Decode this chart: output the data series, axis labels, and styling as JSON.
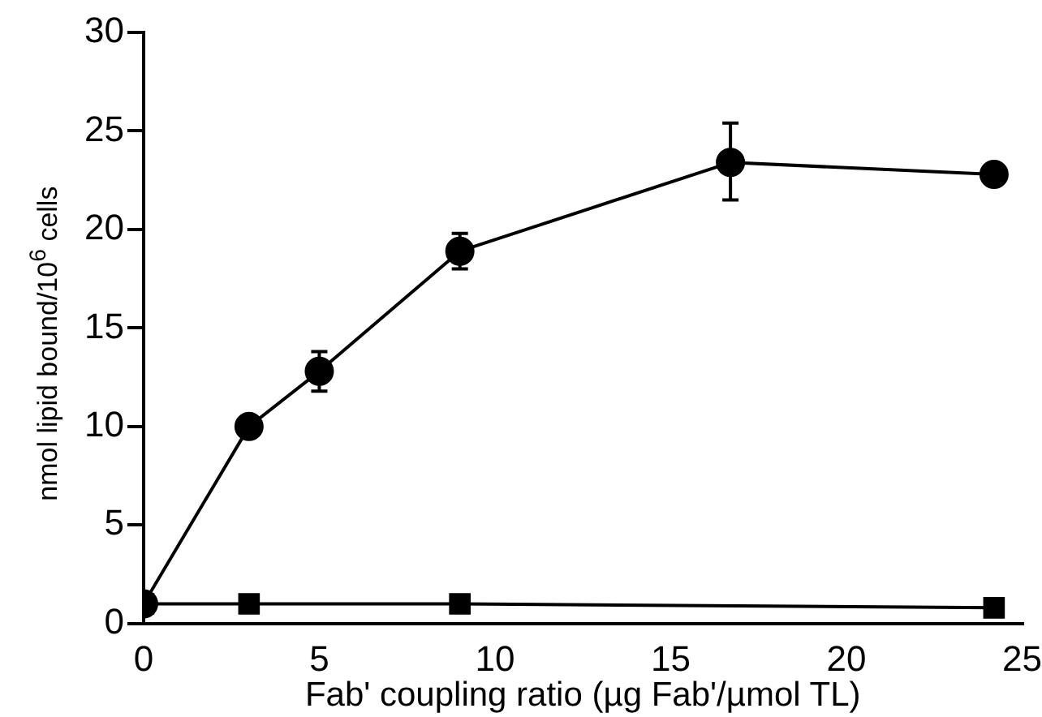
{
  "chart_data": {
    "type": "line",
    "xlabel": "Fab' coupling ratio (µg Fab'/µmol TL)",
    "ylabel": "nmol lipid bound/10$^{6}$ cells",
    "xlim": [
      0,
      25
    ],
    "xticks": [
      0,
      5,
      10,
      15,
      20,
      25
    ],
    "ylim": [
      0,
      30
    ],
    "yticks": [
      0,
      5,
      10,
      15,
      20,
      25,
      30
    ],
    "grid": false,
    "legend": false,
    "line_style": "solid",
    "series": [
      {
        "color": "#000000",
        "marker": "square",
        "x": [
          0,
          3,
          9,
          24.2
        ],
        "values": [
          1,
          1,
          1,
          0.8
        ]
      },
      {
        "color": "#000000",
        "marker": "circle",
        "x": [
          0,
          3,
          5,
          9,
          16.7,
          24.2
        ],
        "values": [
          1,
          10,
          12.8,
          18.9,
          23.4,
          22.8
        ],
        "errors": [
          null,
          null,
          1,
          0.9,
          [
            21.5,
            25.4
          ],
          null
        ]
      }
    ]
  }
}
